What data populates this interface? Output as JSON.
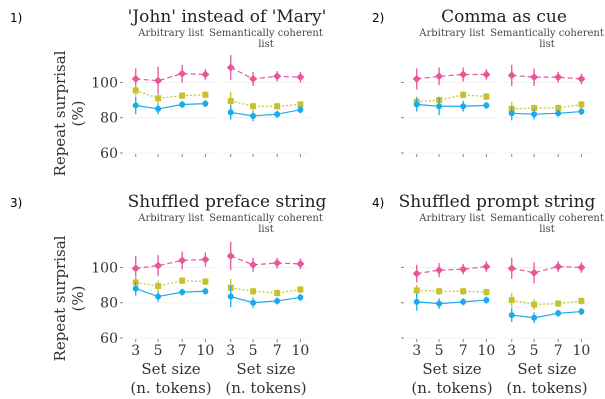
{
  "chart_data": [
    {
      "type": "line",
      "panel_number": "1)",
      "title": "'John' instead of 'Mary'",
      "ylabel": "Repeat surprisal (%)",
      "xlabel": "",
      "ylim": [
        60,
        112
      ],
      "yticks": [
        60,
        80,
        100
      ],
      "categories": [
        "3",
        "5",
        "7",
        "10"
      ],
      "subpanels": [
        {
          "label": "Arbitrary list",
          "series": [
            {
              "color": "#e8559a",
              "values": [
                102,
                101,
                105,
                104.5
              ],
              "err": [
                6,
                8,
                5,
                3
              ]
            },
            {
              "color": "#c9c02e",
              "values": [
                95.5,
                91,
                92.5,
                93
              ],
              "err": [
                3,
                3,
                2,
                2
              ]
            },
            {
              "color": "#1aacea",
              "values": [
                87,
                85,
                87.5,
                88
              ],
              "err": [
                5,
                3,
                2,
                2
              ]
            }
          ]
        },
        {
          "label": "Semantically coherent list",
          "series": [
            {
              "color": "#e8559a",
              "values": [
                108.5,
                102,
                103.5,
                103
              ],
              "err": [
                7,
                4,
                3,
                3
              ]
            },
            {
              "color": "#c9c02e",
              "values": [
                89.5,
                86.5,
                86.5,
                87.5
              ],
              "err": [
                5,
                2,
                2,
                2
              ]
            },
            {
              "color": "#1aacea",
              "values": [
                83,
                81,
                82,
                84.5
              ],
              "err": [
                4,
                3,
                2,
                2
              ]
            }
          ]
        }
      ]
    },
    {
      "type": "line",
      "panel_number": "2)",
      "title": "Comma as cue",
      "ylabel": "",
      "xlabel": "",
      "ylim": [
        60,
        112
      ],
      "yticks": [
        60,
        80,
        100
      ],
      "categories": [
        "3",
        "5",
        "7",
        "10"
      ],
      "subpanels": [
        {
          "label": "Arbitrary list",
          "series": [
            {
              "color": "#e8559a",
              "values": [
                102,
                103.5,
                104.5,
                104.5
              ],
              "err": [
                6,
                5,
                4,
                3
              ]
            },
            {
              "color": "#c9c02e",
              "values": [
                89,
                90,
                93,
                92
              ],
              "err": [
                3,
                2,
                2,
                2
              ]
            },
            {
              "color": "#1aacea",
              "values": [
                87.5,
                86.5,
                86.5,
                87
              ],
              "err": [
                4,
                5,
                3,
                2
              ]
            }
          ]
        },
        {
          "label": "Semantically coherent list",
          "series": [
            {
              "color": "#e8559a",
              "values": [
                104,
                103,
                103,
                102
              ],
              "err": [
                6,
                5,
                3,
                3
              ]
            },
            {
              "color": "#c9c02e",
              "values": [
                85,
                85.5,
                85.5,
                87.5
              ],
              "err": [
                4,
                2,
                2,
                2
              ]
            },
            {
              "color": "#1aacea",
              "values": [
                82.5,
                82,
                82.5,
                83.5
              ],
              "err": [
                4,
                3,
                2,
                2
              ]
            }
          ]
        }
      ]
    },
    {
      "type": "line",
      "panel_number": "3)",
      "title": "Shuffled preface string",
      "ylabel": "Repeat surprisal (%)",
      "xlabel": "",
      "ylim": [
        60,
        112
      ],
      "yticks": [
        60,
        80,
        100
      ],
      "categories": [
        "3",
        "5",
        "7",
        "10"
      ],
      "subpanels": [
        {
          "label": "Arbitrary list",
          "series": [
            {
              "color": "#e8559a",
              "values": [
                99.5,
                101,
                104,
                104.5
              ],
              "err": [
                7,
                6,
                5,
                4
              ]
            },
            {
              "color": "#c9c02e",
              "values": [
                91.5,
                89.5,
                92.5,
                92
              ],
              "err": [
                4,
                3,
                2,
                2
              ]
            },
            {
              "color": "#1aacea",
              "values": [
                88,
                83.5,
                86,
                86.5
              ],
              "err": [
                4,
                3,
                2,
                2
              ]
            }
          ]
        },
        {
          "label": "Semantically coherent list",
          "series": [
            {
              "color": "#e8559a",
              "values": [
                106.5,
                101.5,
                102.5,
                102
              ],
              "err": [
                8,
                4,
                3,
                3
              ]
            },
            {
              "color": "#c9c02e",
              "values": [
                88.5,
                86.5,
                85.5,
                87.5
              ],
              "err": [
                5,
                2,
                2,
                2
              ]
            },
            {
              "color": "#1aacea",
              "values": [
                83.5,
                80,
                81,
                83
              ],
              "err": [
                6,
                3,
                2,
                2
              ]
            }
          ]
        }
      ]
    },
    {
      "type": "line",
      "panel_number": "4)",
      "title": "Shuffled prompt string",
      "ylabel": "",
      "xlabel": "Set size (n. tokens)",
      "ylim": [
        60,
        112
      ],
      "yticks": [
        60,
        80,
        100
      ],
      "categories": [
        "3",
        "5",
        "7",
        "10"
      ],
      "subpanels": [
        {
          "label": "Arbitrary list",
          "series": [
            {
              "color": "#e8559a",
              "values": [
                96.5,
                98.5,
                99,
                100.5
              ],
              "err": [
                5,
                4,
                3,
                3
              ]
            },
            {
              "color": "#c9c02e",
              "values": [
                87,
                86.5,
                86.5,
                86
              ],
              "err": [
                3,
                2,
                2,
                2
              ]
            },
            {
              "color": "#1aacea",
              "values": [
                80.5,
                79.5,
                80.5,
                81.5
              ],
              "err": [
                5,
                3,
                2,
                2
              ]
            }
          ]
        },
        {
          "label": "Semantically coherent list",
          "series": [
            {
              "color": "#e8559a",
              "values": [
                99.5,
                97,
                100.5,
                100
              ],
              "err": [
                6,
                6,
                3,
                3
              ]
            },
            {
              "color": "#c9c02e",
              "values": [
                81.5,
                79,
                79.5,
                81
              ],
              "err": [
                4,
                3,
                2,
                2
              ]
            },
            {
              "color": "#1aacea",
              "values": [
                73,
                71.5,
                74,
                75
              ],
              "err": [
                4,
                3,
                2,
                2
              ]
            }
          ]
        }
      ]
    }
  ],
  "shared": {
    "xlabel_line1": "Set size",
    "xlabel_line2": "(n. tokens)",
    "ylabel_line1": "Repeat surprisal",
    "ylabel_line2": "(%)",
    "sub_arbitrary": "Arbitrary list",
    "sub_semantic_line1": "Semantically coherent",
    "sub_semantic_line2": "list"
  }
}
